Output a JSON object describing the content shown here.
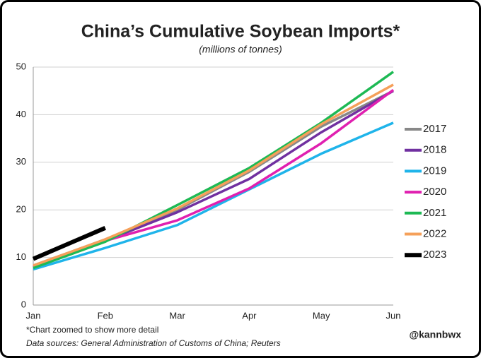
{
  "chart_data": {
    "type": "line",
    "title": "China’s Cumulative Soybean Imports*",
    "subtitle": "(millions of tonnes)",
    "categories": [
      "Jan",
      "Feb",
      "Mar",
      "Apr",
      "May",
      "Jun"
    ],
    "series": [
      {
        "name": "2017",
        "color": "#888888",
        "values": [
          8.3,
          13.8,
          20,
          28,
          37.5,
          45
        ]
      },
      {
        "name": "2018",
        "color": "#7030a0",
        "values": [
          8,
          13.5,
          19.5,
          26.5,
          36.3,
          45
        ]
      },
      {
        "name": "2019",
        "color": "#1fb4ea",
        "values": [
          7.5,
          12,
          16.8,
          24.3,
          31.8,
          38.3
        ]
      },
      {
        "name": "2020",
        "color": "#e020b0",
        "values": [
          8,
          13.5,
          17.8,
          24.5,
          34,
          45.2
        ]
      },
      {
        "name": "2021",
        "color": "#1db954",
        "values": [
          7.8,
          13.3,
          21,
          28.8,
          38.3,
          49
        ]
      },
      {
        "name": "2022",
        "color": "#f5a05a",
        "values": [
          8.3,
          13.8,
          20.3,
          28.3,
          38,
          46.3
        ]
      },
      {
        "name": "2023",
        "color": "#000000",
        "values": [
          9.7,
          16.2,
          null,
          null,
          null,
          null
        ]
      }
    ],
    "ylim": [
      0,
      50
    ],
    "yticks": [
      0,
      10,
      20,
      30,
      40,
      50
    ],
    "grid": true,
    "legend": "right",
    "notes": [
      "*Chart zoomed to show more detail",
      "Data sources: General Administration of Customs of China; Reuters"
    ],
    "credit": "@kannbwx"
  }
}
